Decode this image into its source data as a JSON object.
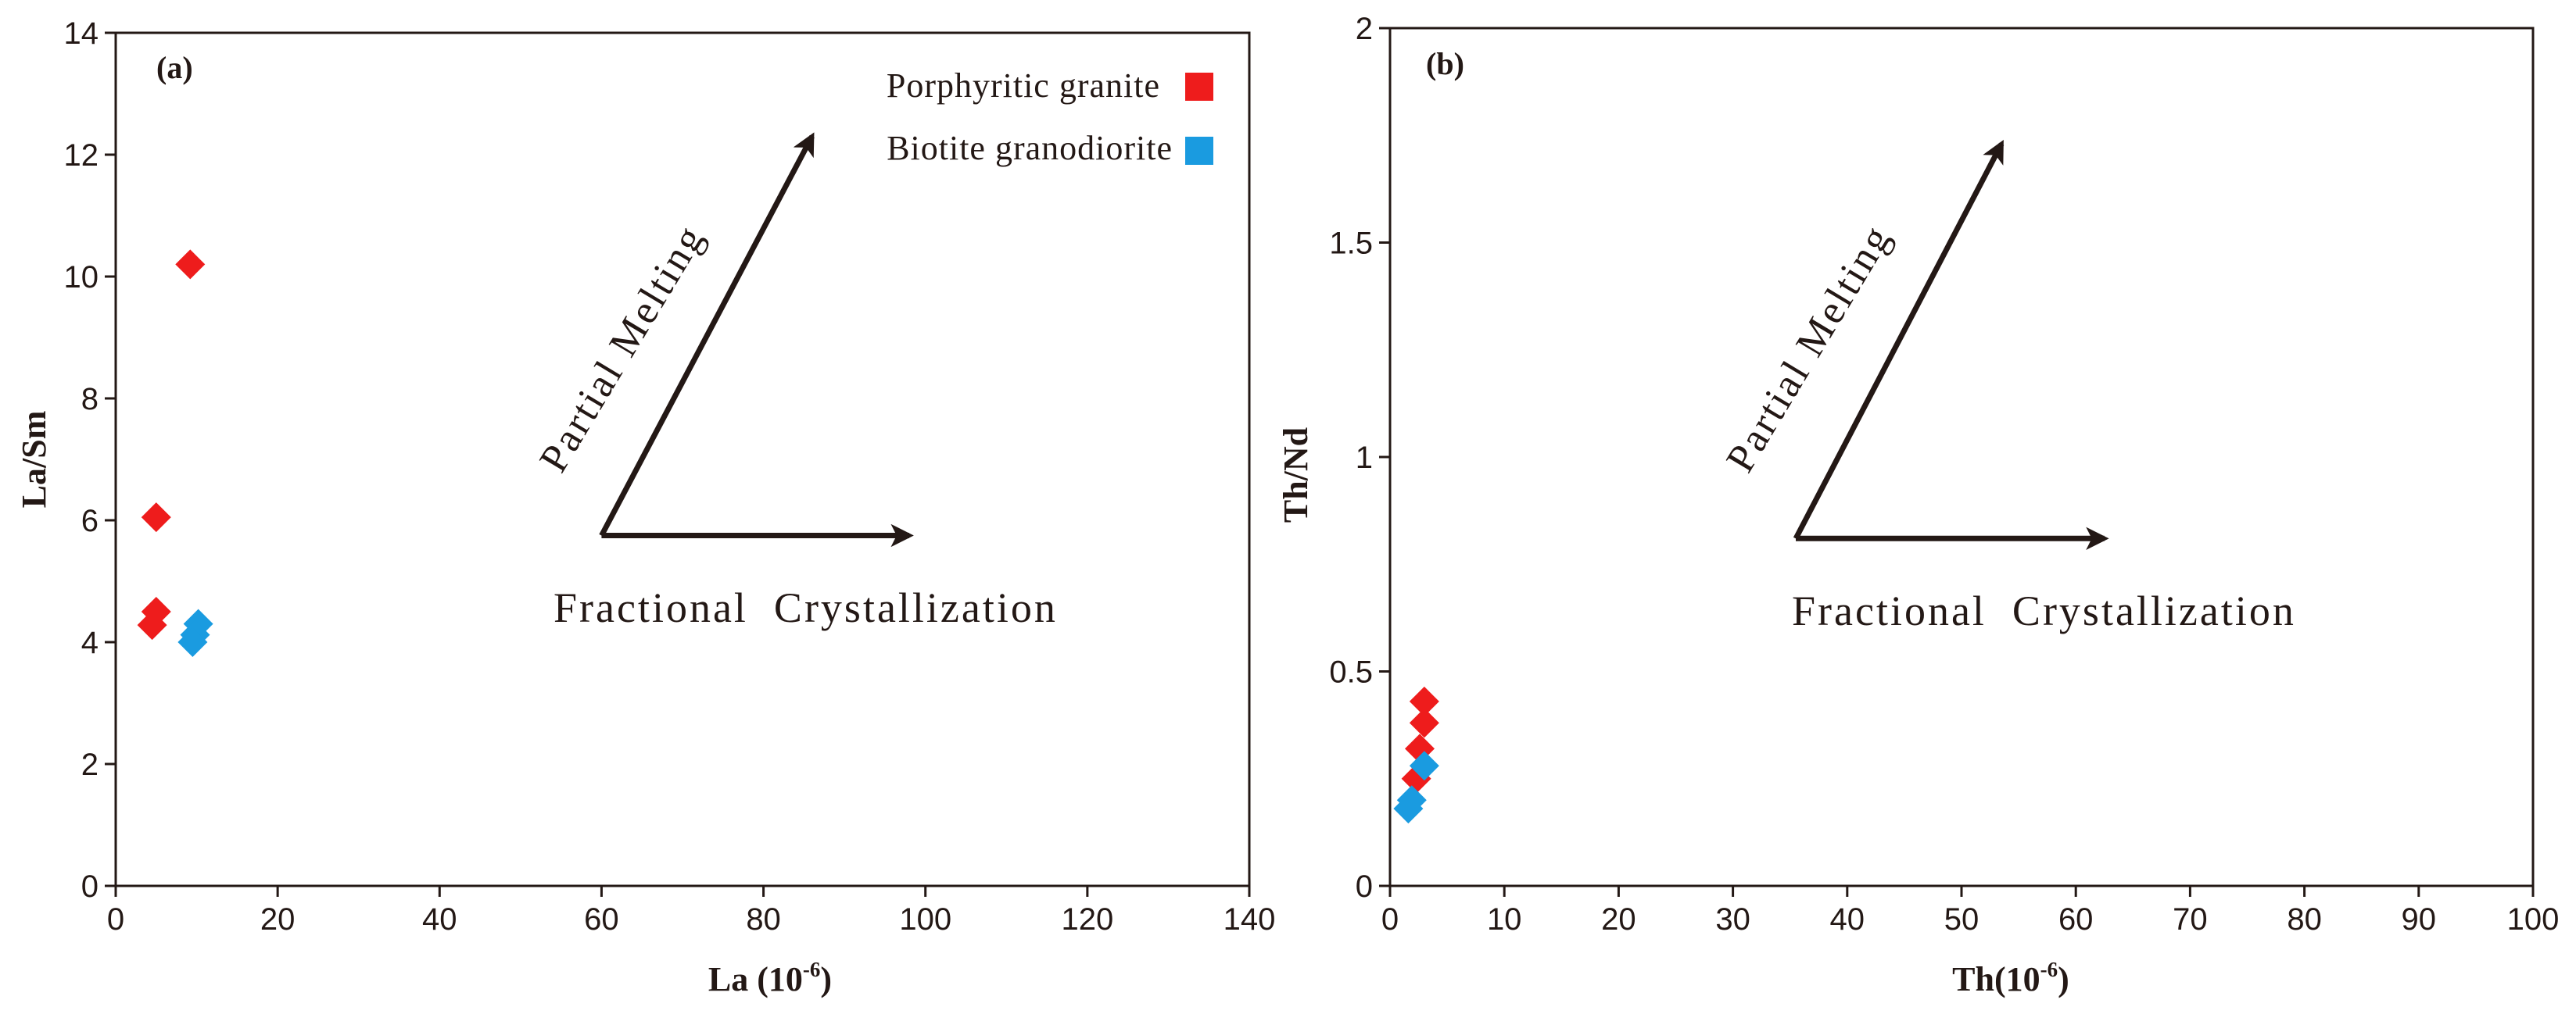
{
  "chart_data": [
    {
      "type": "scatter",
      "panel_label": "(a)",
      "xlabel": "La (10",
      "xlabel_sup": "-6",
      "xlabel_tail": ")",
      "ylabel": "La/Sm",
      "xlim": [
        0,
        140
      ],
      "ylim": [
        0,
        14
      ],
      "xticks": [
        0,
        20,
        40,
        60,
        80,
        100,
        120,
        140
      ],
      "yticks": [
        0,
        2,
        4,
        6,
        8,
        10,
        12,
        14
      ],
      "legend_placement": "top-right",
      "series": [
        {
          "name": "Porphyritic granite",
          "color": "#ee1c1c",
          "marker": "diamond",
          "points": [
            [
              9.2,
              10.2
            ],
            [
              5.0,
              6.05
            ],
            [
              5.0,
              4.5
            ],
            [
              4.5,
              4.28
            ]
          ]
        },
        {
          "name": "Biotite granodiorite",
          "color": "#1a9be0",
          "marker": "diamond",
          "points": [
            [
              10.2,
              4.3
            ],
            [
              9.8,
              4.12
            ],
            [
              9.5,
              4.0
            ]
          ]
        }
      ],
      "annotations": {
        "vertical_arrow_label": "Partial Melting",
        "horizontal_arrow_label": "Fractional  Crystallization",
        "arrow_origin": [
          60,
          5.75
        ],
        "horizontal_arrow_end": [
          98,
          5.75
        ],
        "diagonal_arrow_end": [
          86,
          12.3
        ]
      }
    },
    {
      "type": "scatter",
      "panel_label": "(b)",
      "xlabel": "Th(10",
      "xlabel_sup": "-6",
      "xlabel_tail": ")",
      "ylabel": "Th/Nd",
      "xlim": [
        0,
        100
      ],
      "ylim": [
        0,
        2
      ],
      "xticks": [
        0,
        10,
        20,
        30,
        40,
        50,
        60,
        70,
        80,
        90,
        100
      ],
      "yticks": [
        "0",
        "0.5",
        "1",
        "1.5",
        "2"
      ],
      "series": [
        {
          "name": "Porphyritic granite",
          "color": "#ee1c1c",
          "marker": "diamond",
          "points": [
            [
              3.0,
              0.43
            ],
            [
              3.0,
              0.38
            ],
            [
              2.6,
              0.32
            ],
            [
              2.3,
              0.25
            ]
          ]
        },
        {
          "name": "Biotite granodiorite",
          "color": "#1a9be0",
          "marker": "diamond",
          "points": [
            [
              3.0,
              0.28
            ],
            [
              1.9,
              0.2
            ],
            [
              1.6,
              0.18
            ]
          ]
        }
      ],
      "annotations": {
        "vertical_arrow_label": "Partial Melting",
        "horizontal_arrow_label": "Fractional  Crystallization",
        "arrow_origin": [
          35.5,
          0.81
        ],
        "horizontal_arrow_end": [
          62.5,
          0.81
        ],
        "diagonal_arrow_end": [
          53.5,
          1.73
        ]
      }
    }
  ]
}
